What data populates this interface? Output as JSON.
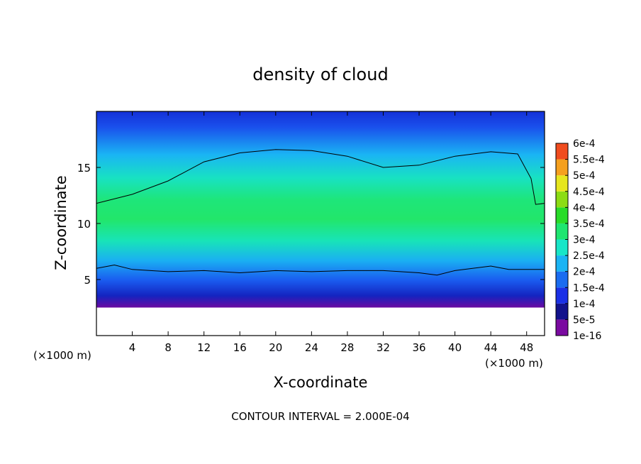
{
  "chart_data": {
    "type": "heatmap",
    "title": "density of cloud",
    "xlabel": "X-coordinate",
    "ylabel": "Z-coordinate",
    "x_unit": "(×1000 m)",
    "xlim": [
      0,
      50
    ],
    "ylim": [
      0,
      20
    ],
    "x_ticks": [
      4,
      8,
      12,
      16,
      20,
      24,
      28,
      32,
      36,
      40,
      44,
      48
    ],
    "y_ticks": [
      5,
      10,
      15
    ],
    "footer": "CONTOUR INTERVAL = 2.000E-04",
    "colorbar": {
      "levels": [
        "1e-16",
        "5e-5",
        "1e-4",
        "1.5e-4",
        "2e-4",
        "2.5e-4",
        "3e-4",
        "3.5e-4",
        "4e-4",
        "4.5e-4",
        "5e-4",
        "5.5e-4",
        "6e-4"
      ],
      "colors": [
        "#7a0aa0",
        "#12128c",
        "#1a30e6",
        "#1a6cf0",
        "#1ab4f4",
        "#18e6c8",
        "#1ee670",
        "#28dc28",
        "#8cdc14",
        "#e6e61e",
        "#f5a01e",
        "#f04c1e",
        "#f07a7a"
      ]
    },
    "cloud_base_z": 2.5,
    "cloud_top_z": 19.7,
    "contour_level": "2e-4",
    "contour_upper_z": [
      [
        0,
        11.8
      ],
      [
        4,
        12.6
      ],
      [
        8,
        13.8
      ],
      [
        12,
        15.5
      ],
      [
        16,
        16.3
      ],
      [
        20,
        16.6
      ],
      [
        24,
        16.5
      ],
      [
        28,
        16.0
      ],
      [
        32,
        15.0
      ],
      [
        36,
        15.2
      ],
      [
        40,
        16.0
      ],
      [
        44,
        16.4
      ],
      [
        47,
        16.2
      ],
      [
        48.5,
        14.0
      ],
      [
        49,
        11.7
      ],
      [
        50,
        11.8
      ]
    ],
    "contour_lower_z": [
      [
        0,
        6.0
      ],
      [
        2,
        6.3
      ],
      [
        4,
        5.9
      ],
      [
        8,
        5.7
      ],
      [
        12,
        5.8
      ],
      [
        16,
        5.6
      ],
      [
        20,
        5.8
      ],
      [
        24,
        5.7
      ],
      [
        28,
        5.8
      ],
      [
        32,
        5.8
      ],
      [
        36,
        5.6
      ],
      [
        38,
        5.4
      ],
      [
        40,
        5.8
      ],
      [
        44,
        6.2
      ],
      [
        46,
        5.9
      ],
      [
        50,
        5.9
      ]
    ]
  }
}
